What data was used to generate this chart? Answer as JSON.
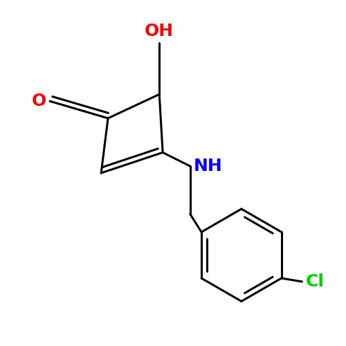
{
  "background_color": "#ffffff",
  "bond_color": "#000000",
  "bond_width": 2.2,
  "figsize": [
    5.0,
    5.0
  ],
  "dpi": 100,
  "labels": {
    "O_ketone": {
      "text": "O",
      "color": "#ff0000",
      "fontsize": 18,
      "ha": "right",
      "va": "center"
    },
    "O_hydroxyl": {
      "text": "OH",
      "color": "#ff0000",
      "fontsize": 18,
      "ha": "center",
      "va": "bottom"
    },
    "N": {
      "text": "NH",
      "color": "#0000ff",
      "fontsize": 18,
      "ha": "left",
      "va": "center"
    },
    "Cl": {
      "text": "Cl",
      "color": "#00cc00",
      "fontsize": 18,
      "ha": "left",
      "va": "center"
    }
  }
}
